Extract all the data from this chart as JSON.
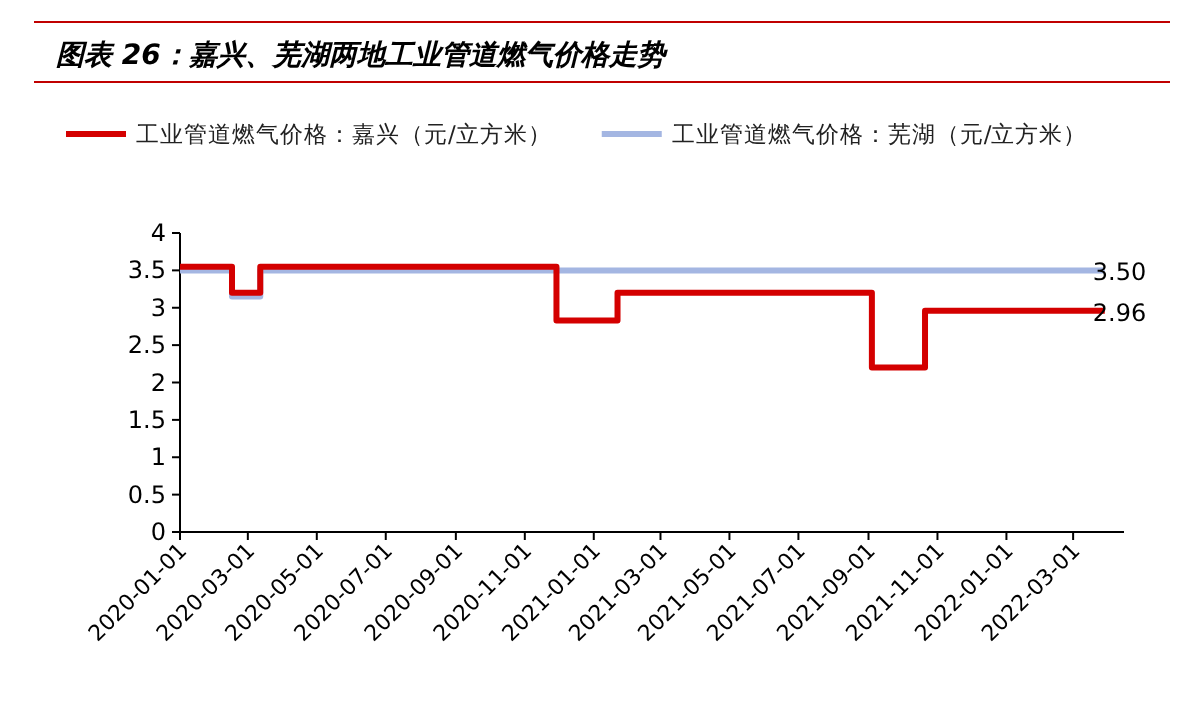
{
  "chart_data": {
    "type": "step",
    "title": "图表 26：嘉兴、芜湖两地工业管道燃气价格走势",
    "xlim": [
      "2020-01-01",
      "2022-04-15"
    ],
    "xticks": [
      "2020-01-01",
      "2020-03-01",
      "2020-05-01",
      "2020-07-01",
      "2020-09-01",
      "2020-11-01",
      "2021-01-01",
      "2021-03-01",
      "2021-05-01",
      "2021-07-01",
      "2021-09-01",
      "2021-11-01",
      "2022-01-01",
      "2022-03-01"
    ],
    "ylim": [
      0,
      4
    ],
    "yticks": [
      0,
      0.5,
      1,
      1.5,
      2,
      2.5,
      3,
      3.5,
      4
    ],
    "grid": false,
    "legend": "top left",
    "series": [
      {
        "name": "工业管道燃气价格：嘉兴（元/立方米）",
        "color": "#d40000",
        "x": [
          "2020-01-01",
          "2020-02-16",
          "2020-03-12",
          "2020-11-29",
          "2021-01-22",
          "2021-09-04",
          "2021-10-21",
          "2022-03-29"
        ],
        "values": [
          3.55,
          3.2,
          3.55,
          2.83,
          3.2,
          2.2,
          2.96,
          2.96
        ],
        "value_labels": [
          null,
          null,
          null,
          null,
          null,
          null,
          null,
          "2.96"
        ]
      },
      {
        "name": "工业管道燃气价格：芜湖（元/立方米）",
        "color": "#a4b6e2",
        "x": [
          "2020-01-01",
          "2020-02-16",
          "2020-03-12",
          "2022-03-29"
        ],
        "values": [
          3.5,
          3.15,
          3.5,
          3.5
        ],
        "value_labels": [
          null,
          null,
          null,
          "3.50"
        ]
      }
    ]
  }
}
